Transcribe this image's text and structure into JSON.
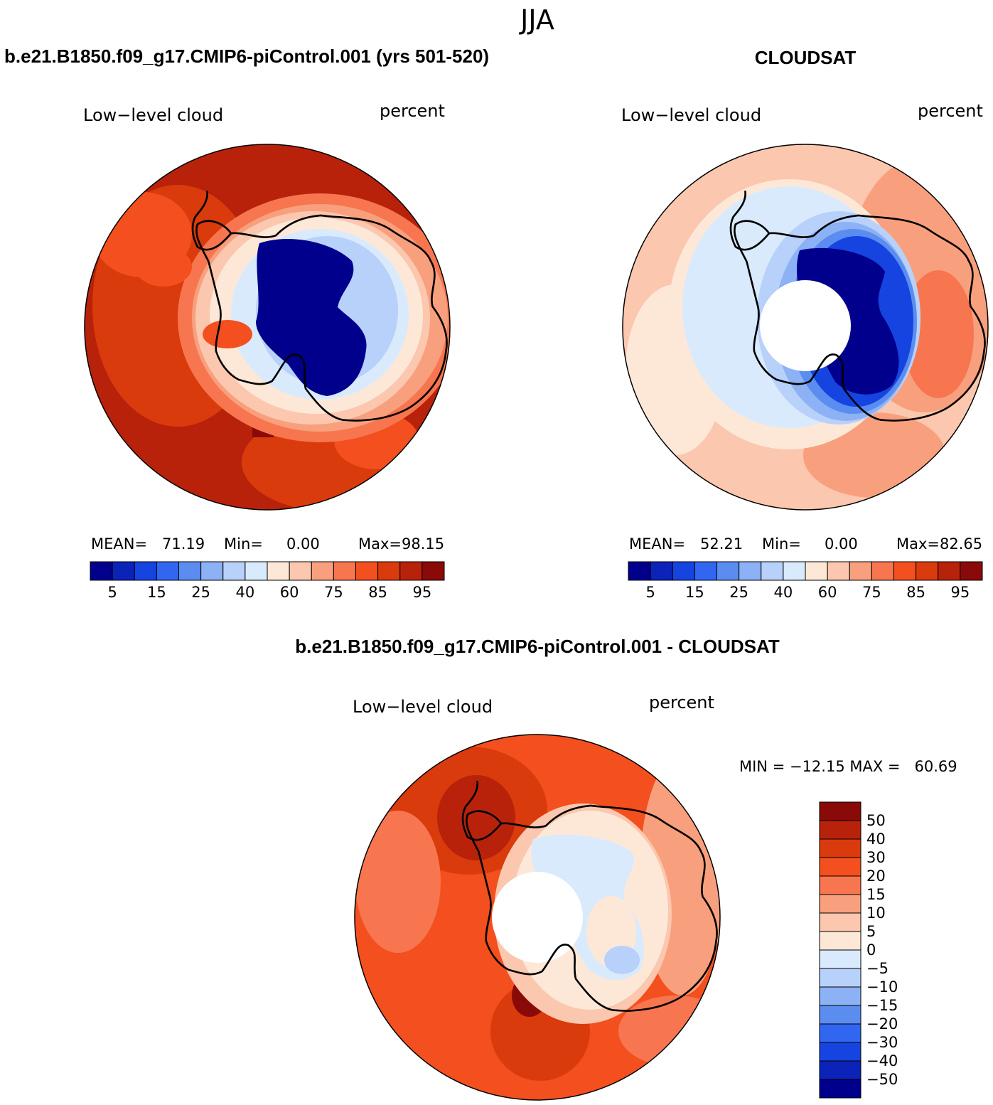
{
  "page_title": "JJA",
  "panels": [
    {
      "title": "b.e21.B1850.f09_g17.CMIP6-piControl.001 (yrs 501-520)",
      "left_label": "Low−level cloud",
      "right_label": "percent",
      "stats": {
        "mean_label": "MEAN=",
        "mean": "71.19",
        "min_label": "Min=",
        "min": "0.00",
        "max_label": "Max=",
        "max": "98.15"
      }
    },
    {
      "title": "CLOUDSAT",
      "left_label": "Low−level cloud",
      "right_label": "percent",
      "stats": {
        "mean_label": "MEAN=",
        "mean": "52.21",
        "min_label": "Min=",
        "min": "0.00",
        "max_label": "Max=",
        "max": "82.65"
      }
    },
    {
      "title": "b.e21.B1850.f09_g17.CMIP6-piControl.001 - CLOUDSAT",
      "left_label": "Low−level cloud",
      "right_label": "percent",
      "stats": {
        "text": "MIN = −12.15 MAX =   60.69"
      }
    }
  ],
  "chart_data": [
    {
      "type": "heatmap",
      "projection": "south polar stereographic",
      "title": "b.e21.B1850.f09_g17.CMIP6-piControl.001 (yrs 501-520)",
      "variable": "Low−level cloud",
      "units": "percent",
      "mean": 71.19,
      "min": 0.0,
      "max": 98.15,
      "colorbar": {
        "orientation": "horizontal",
        "tick_labels": [
          "5",
          "15",
          "25",
          "40",
          "60",
          "75",
          "85",
          "95"
        ],
        "colors": [
          "#00008c",
          "#0b23b8",
          "#1644e0",
          "#3066f0",
          "#5b8df0",
          "#8cb1f4",
          "#b8d1fb",
          "#d9eafd",
          "#fde8d8",
          "#fbc7ae",
          "#f8a07d",
          "#f7764f",
          "#f44f1e",
          "#d93b0d",
          "#b8220b",
          "#8a0a0a"
        ]
      }
    },
    {
      "type": "heatmap",
      "projection": "south polar stereographic",
      "title": "CLOUDSAT",
      "variable": "Low−level cloud",
      "units": "percent",
      "mean": 52.21,
      "min": 0.0,
      "max": 82.65,
      "colorbar": {
        "orientation": "horizontal",
        "tick_labels": [
          "5",
          "15",
          "25",
          "40",
          "60",
          "75",
          "85",
          "95"
        ],
        "colors": [
          "#00008c",
          "#0b23b8",
          "#1644e0",
          "#3066f0",
          "#5b8df0",
          "#8cb1f4",
          "#b8d1fb",
          "#d9eafd",
          "#fde8d8",
          "#fbc7ae",
          "#f8a07d",
          "#f7764f",
          "#f44f1e",
          "#d93b0d",
          "#b8220b",
          "#8a0a0a"
        ]
      }
    },
    {
      "type": "heatmap",
      "projection": "south polar stereographic",
      "title": "b.e21.B1850.f09_g17.CMIP6-piControl.001 - CLOUDSAT",
      "variable": "Low−level cloud",
      "units": "percent",
      "min": -12.15,
      "max": 60.69,
      "colorbar": {
        "orientation": "vertical",
        "tick_labels": [
          "50",
          "40",
          "30",
          "20",
          "15",
          "10",
          "5",
          "0",
          "−5",
          "−10",
          "−15",
          "−20",
          "−30",
          "−40",
          "−50"
        ],
        "colors": [
          "#8a0a0a",
          "#b8220b",
          "#d93b0d",
          "#f44f1e",
          "#f7764f",
          "#f8a07d",
          "#fbc7ae",
          "#fde8d8",
          "#d9eafd",
          "#b8d1fb",
          "#8cb1f4",
          "#5b8df0",
          "#3066f0",
          "#1644e0",
          "#0b23b8",
          "#00008c"
        ]
      }
    }
  ]
}
